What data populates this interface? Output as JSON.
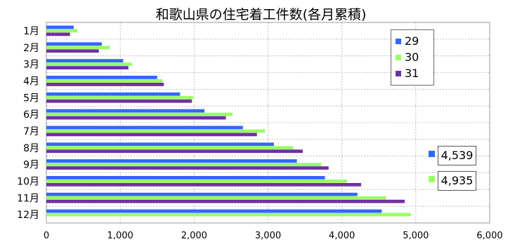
{
  "chart_data": {
    "type": "bar",
    "orientation": "horizontal",
    "title": "和歌山県の住宅着工件数(各月累積)",
    "xlabel": "",
    "ylabel": "",
    "categories": [
      "1月",
      "2月",
      "3月",
      "4月",
      "5月",
      "6月",
      "7月",
      "8月",
      "9月",
      "10月",
      "11月",
      "12月"
    ],
    "series": [
      {
        "name": "29",
        "color": "#3366ff",
        "values": [
          370,
          750,
          1040,
          1500,
          1810,
          2140,
          2660,
          3080,
          3390,
          3770,
          4210,
          4539
        ]
      },
      {
        "name": "30",
        "color": "#99ff66",
        "values": [
          420,
          860,
          1160,
          1570,
          1990,
          2520,
          2960,
          3340,
          3720,
          4070,
          4600,
          4935
        ]
      },
      {
        "name": "31",
        "color": "#7030a0",
        "values": [
          320,
          710,
          1110,
          1590,
          1970,
          2430,
          2850,
          3470,
          3820,
          4260,
          4850,
          null
        ]
      }
    ],
    "xlim": [
      0,
      6000
    ],
    "xticks": [
      "0",
      "1,000",
      "2,000",
      "3,000",
      "4,000",
      "5,000",
      "6,000"
    ],
    "xtick_values": [
      0,
      1000,
      2000,
      3000,
      4000,
      5000,
      6000
    ],
    "grid": true,
    "legend_position": "top-right",
    "callouts": [
      {
        "label": "4,539",
        "color": "#3366ff"
      },
      {
        "label": "4,935",
        "color": "#99ff66"
      }
    ]
  }
}
